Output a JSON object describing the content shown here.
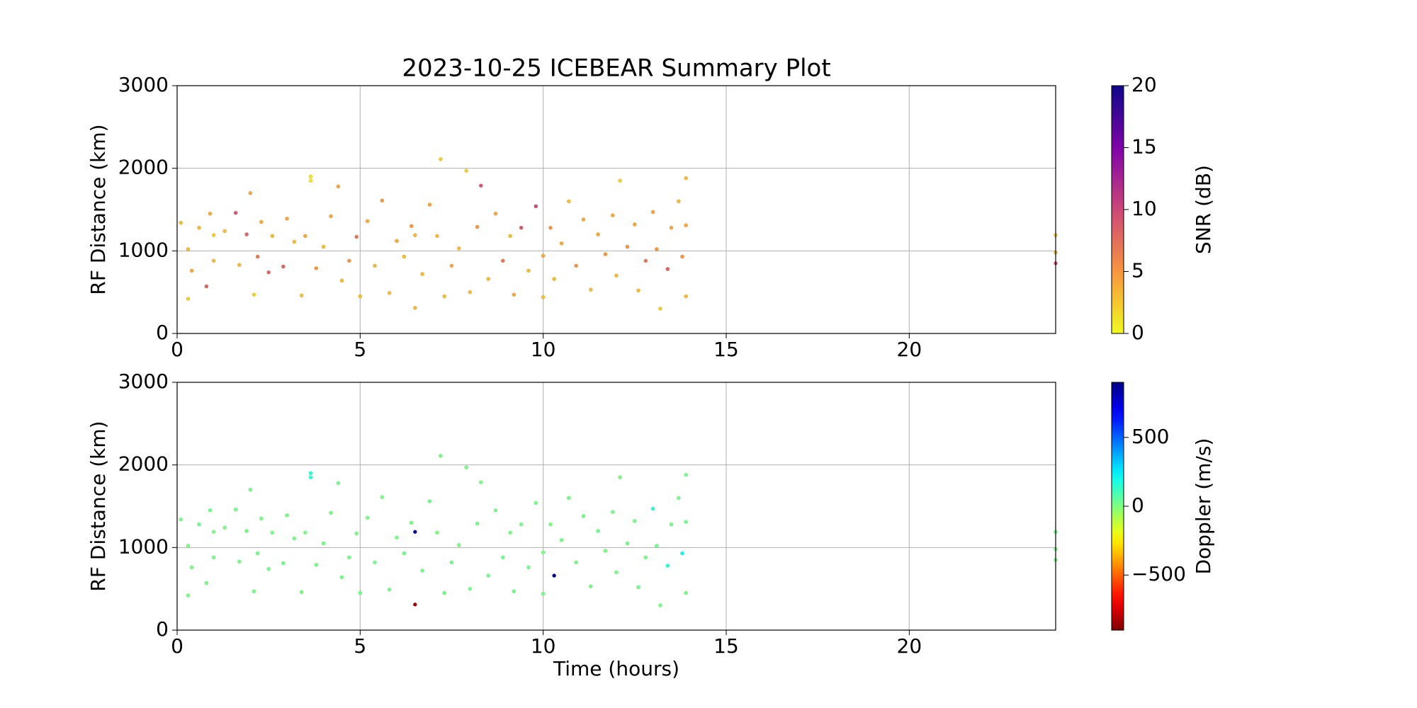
{
  "chart_data": [
    {
      "type": "scatter",
      "title": "2023-10-25 ICEBEAR Summary Plot",
      "y_label": "RF Distance (km)",
      "xlim": [
        0,
        24
      ],
      "xticks": [
        0,
        5,
        10,
        15,
        20
      ],
      "ylim": [
        0,
        3000
      ],
      "yticks": [
        0,
        1000,
        2000,
        3000
      ],
      "grid": true,
      "x": [
        0.1,
        0.3,
        0.3,
        0.4,
        0.6,
        0.8,
        0.9,
        1.0,
        1.0,
        1.3,
        1.6,
        1.7,
        1.9,
        2.0,
        2.1,
        2.2,
        2.3,
        2.5,
        2.6,
        2.9,
        3.0,
        3.2,
        3.4,
        3.5,
        3.65,
        3.65,
        3.8,
        4.0,
        4.2,
        4.4,
        4.5,
        4.7,
        4.9,
        5.0,
        5.2,
        5.4,
        5.6,
        5.8,
        6.0,
        6.2,
        6.4,
        6.5,
        6.5,
        6.7,
        6.9,
        7.1,
        7.2,
        7.3,
        7.5,
        7.7,
        7.9,
        8.0,
        8.2,
        8.3,
        8.5,
        8.7,
        8.9,
        9.1,
        9.2,
        9.4,
        9.6,
        9.8,
        10.0,
        10.0,
        10.2,
        10.3,
        10.5,
        10.7,
        10.9,
        11.1,
        11.3,
        11.5,
        11.7,
        11.9,
        12.0,
        12.1,
        12.3,
        12.5,
        12.6,
        12.8,
        13.0,
        13.1,
        13.2,
        13.4,
        13.5,
        13.7,
        13.8,
        13.9,
        13.9,
        13.9,
        24.0,
        24.0,
        24.0
      ],
      "y": [
        1340,
        420,
        1020,
        760,
        1280,
        570,
        1450,
        880,
        1190,
        1240,
        1460,
        830,
        1200,
        1700,
        470,
        930,
        1350,
        740,
        1180,
        810,
        1390,
        1110,
        460,
        1180,
        1900,
        1850,
        790,
        1050,
        1420,
        1780,
        640,
        880,
        1170,
        450,
        1360,
        820,
        1610,
        490,
        1120,
        930,
        1300,
        1190,
        310,
        720,
        1560,
        1180,
        2110,
        450,
        820,
        1030,
        1970,
        500,
        1290,
        1790,
        660,
        1450,
        880,
        1180,
        470,
        1280,
        760,
        1540,
        940,
        440,
        1280,
        660,
        1090,
        1600,
        820,
        1380,
        530,
        1200,
        960,
        1430,
        700,
        1850,
        1050,
        1320,
        520,
        880,
        1470,
        1020,
        300,
        780,
        1280,
        1600,
        930,
        1880,
        450,
        1310,
        850,
        1190,
        980
      ],
      "c": [
        3,
        2,
        3,
        4,
        3,
        8,
        4,
        3,
        2,
        3,
        9,
        3,
        8,
        4,
        2,
        7,
        4,
        8,
        3,
        8,
        4,
        3,
        3,
        4,
        1,
        1,
        5,
        3,
        4,
        4,
        3,
        5,
        7,
        3,
        4,
        3,
        5,
        3,
        4,
        3,
        5,
        3,
        3,
        3,
        4,
        3,
        2,
        3,
        4,
        3,
        2,
        3,
        5,
        9,
        3,
        4,
        7,
        3,
        4,
        9,
        3,
        10,
        4,
        3,
        5,
        3,
        4,
        3,
        5,
        4,
        3,
        4,
        5,
        4,
        3,
        2,
        5,
        4,
        3,
        7,
        4,
        5,
        2,
        8,
        4,
        3,
        5,
        3,
        3,
        4,
        9,
        2,
        3
      ],
      "colorbar": {
        "label": "SNR (dB)",
        "lim": [
          0,
          20
        ],
        "ticks": [
          0,
          5,
          10,
          15,
          20
        ],
        "colormap": "plasma_r"
      }
    },
    {
      "type": "scatter",
      "y_label": "RF Distance (km)",
      "x_label": "Time (hours)",
      "xlim": [
        0,
        24
      ],
      "xticks": [
        0,
        5,
        10,
        15,
        20
      ],
      "ylim": [
        0,
        3000
      ],
      "yticks": [
        0,
        1000,
        2000,
        3000
      ],
      "grid": true,
      "x": [
        0.1,
        0.3,
        0.3,
        0.4,
        0.6,
        0.8,
        0.9,
        1.0,
        1.0,
        1.3,
        1.6,
        1.7,
        1.9,
        2.0,
        2.1,
        2.2,
        2.3,
        2.5,
        2.6,
        2.9,
        3.0,
        3.2,
        3.4,
        3.5,
        3.65,
        3.65,
        3.8,
        4.0,
        4.2,
        4.4,
        4.5,
        4.7,
        4.9,
        5.0,
        5.2,
        5.4,
        5.6,
        5.8,
        6.0,
        6.2,
        6.4,
        6.5,
        6.5,
        6.7,
        6.9,
        7.1,
        7.2,
        7.3,
        7.5,
        7.7,
        7.9,
        8.0,
        8.2,
        8.3,
        8.5,
        8.7,
        8.9,
        9.1,
        9.2,
        9.4,
        9.6,
        9.8,
        10.0,
        10.0,
        10.2,
        10.3,
        10.5,
        10.7,
        10.9,
        11.1,
        11.3,
        11.5,
        11.7,
        11.9,
        12.0,
        12.1,
        12.3,
        12.5,
        12.6,
        12.8,
        13.0,
        13.1,
        13.2,
        13.4,
        13.5,
        13.7,
        13.8,
        13.9,
        13.9,
        13.9,
        24.0,
        24.0,
        24.0
      ],
      "y": [
        1340,
        420,
        1020,
        760,
        1280,
        570,
        1450,
        880,
        1190,
        1240,
        1460,
        830,
        1200,
        1700,
        470,
        930,
        1350,
        740,
        1180,
        810,
        1390,
        1110,
        460,
        1180,
        1900,
        1850,
        790,
        1050,
        1420,
        1780,
        640,
        880,
        1170,
        450,
        1360,
        820,
        1610,
        490,
        1120,
        930,
        1300,
        1190,
        310,
        720,
        1560,
        1180,
        2110,
        450,
        820,
        1030,
        1970,
        500,
        1290,
        1790,
        660,
        1450,
        880,
        1180,
        470,
        1280,
        760,
        1540,
        940,
        440,
        1280,
        660,
        1090,
        1600,
        820,
        1380,
        530,
        1200,
        960,
        1430,
        700,
        1850,
        1050,
        1320,
        520,
        880,
        1470,
        1020,
        300,
        780,
        1280,
        1600,
        930,
        1880,
        450,
        1310,
        850,
        1190,
        980
      ],
      "c": [
        20,
        10,
        15,
        20,
        30,
        10,
        25,
        20,
        15,
        10,
        20,
        15,
        10,
        20,
        15,
        20,
        10,
        25,
        15,
        20,
        10,
        15,
        20,
        10,
        150,
        150,
        15,
        20,
        10,
        25,
        20,
        15,
        10,
        20,
        15,
        25,
        10,
        20,
        15,
        20,
        10,
        850,
        -850,
        15,
        20,
        10,
        15,
        20,
        25,
        15,
        10,
        20,
        15,
        10,
        20,
        15,
        25,
        10,
        20,
        15,
        20,
        10,
        15,
        20,
        10,
        870,
        20,
        15,
        10,
        20,
        15,
        25,
        10,
        20,
        15,
        10,
        20,
        15,
        25,
        10,
        150,
        20,
        15,
        150,
        20,
        15,
        200,
        20,
        15,
        20,
        15,
        20,
        15
      ],
      "colorbar": {
        "label": "Doppler (m/s)",
        "lim": [
          -900,
          900
        ],
        "ticks": [
          {
            "value": -500,
            "label": "−500"
          },
          0,
          500
        ],
        "colormap": "jet_r"
      }
    }
  ]
}
